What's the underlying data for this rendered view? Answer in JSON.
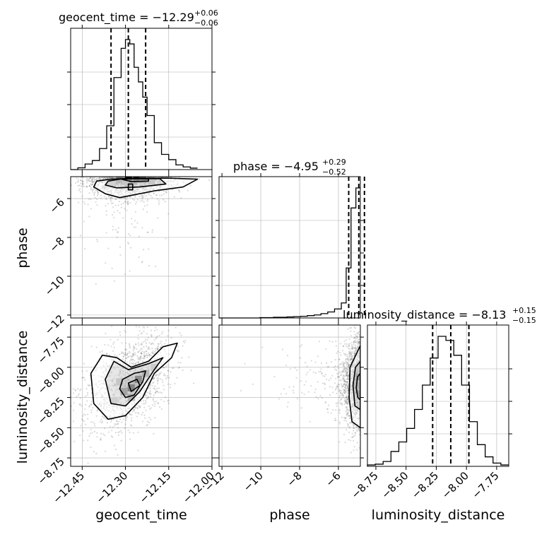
{
  "chart_data": {
    "type": "corner",
    "parameters": [
      "geocent_time",
      "phase",
      "luminosity_distance"
    ],
    "axis_labels": {
      "geocent_time": "geocent_time",
      "phase": "phase",
      "luminosity_distance": "luminosity_distance"
    },
    "ranges": {
      "geocent_time": [
        -12.49,
        -12.0
      ],
      "phase": [
        -12.15,
        -4.87
      ],
      "luminosity_distance": [
        -8.82,
        -7.65
      ]
    },
    "ticks": {
      "geocent_time": [
        -12.45,
        -12.3,
        -12.15,
        -12.0
      ],
      "phase": [
        -12,
        -10,
        -8,
        -6
      ],
      "luminosity_distance": [
        -8.75,
        -8.5,
        -8.25,
        -8.0,
        -7.75
      ]
    },
    "tick_labels": {
      "geocent_time": [
        "−12.45",
        "−12.30",
        "−12.15",
        "−12.00"
      ],
      "phase": [
        "−12",
        "−10",
        "−8",
        "−6"
      ],
      "luminosity_distance": [
        "−8.75",
        "−8.50",
        "−8.25",
        "−8.00",
        "−7.75"
      ]
    },
    "titles": [
      {
        "param": "geocent_time",
        "main": "geocent_time = −12.29",
        "plus": "+0.06",
        "minus": "−0.06"
      },
      {
        "param": "phase",
        "main": "phase = −4.95",
        "plus": "+0.29",
        "minus": "−0.52"
      },
      {
        "param": "luminosity_distance",
        "main": "luminosity_distance = −8.13",
        "plus": "+0.15",
        "minus": "−0.15"
      }
    ],
    "quantiles": {
      "geocent_time": [
        -12.35,
        -12.29,
        -12.23
      ],
      "phase": [
        -5.47,
        -4.95,
        -4.66
      ],
      "luminosity_distance": [
        -8.28,
        -8.13,
        -7.98
      ]
    },
    "histograms": {
      "geocent_time": {
        "edges": [
          -12.49,
          -12.465,
          -12.44,
          -12.415,
          -12.39,
          -12.365,
          -12.34,
          -12.315,
          -12.3,
          -12.285,
          -12.27,
          -12.255,
          -12.24,
          -12.225,
          -12.2,
          -12.175,
          -12.15,
          -12.125,
          -12.1,
          -12.075,
          -12.05
        ],
        "counts": [
          0,
          6,
          19,
          31,
          72,
          150,
          315,
          415,
          445,
          430,
          350,
          300,
          248,
          185,
          92,
          52,
          34,
          16,
          9,
          5
        ]
      },
      "phase": {
        "edges": [
          -12.15,
          -11.8,
          -11.45,
          -11.1,
          -10.75,
          -10.4,
          -10.05,
          -9.7,
          -9.35,
          -9.0,
          -8.65,
          -8.3,
          -7.95,
          -7.6,
          -7.25,
          -6.9,
          -6.55,
          -6.2,
          -5.85,
          -5.6,
          -5.35,
          -5.1,
          -4.87
        ],
        "counts": [
          0,
          0,
          0,
          0,
          0,
          0,
          1,
          1,
          2,
          2,
          3,
          4,
          5,
          7,
          9,
          13,
          18,
          27,
          45,
          150,
          330,
          390
        ]
      },
      "luminosity_distance": {
        "edges": [
          -8.82,
          -8.755,
          -8.69,
          -8.625,
          -8.56,
          -8.495,
          -8.43,
          -8.365,
          -8.3,
          -8.235,
          -8.17,
          -8.105,
          -8.04,
          -7.975,
          -7.91,
          -7.845,
          -7.78,
          -7.715,
          -7.65
        ],
        "counts": [
          5,
          8,
          18,
          55,
          90,
          140,
          210,
          300,
          400,
          480,
          465,
          410,
          300,
          165,
          80,
          35,
          12,
          5
        ]
      }
    },
    "contours_2d": [
      {
        "x": "geocent_time",
        "y": "phase",
        "levels": [
          [
            [
              -12.4,
              -5.1
            ],
            [
              -12.35,
              -5.0
            ],
            [
              -12.27,
              -4.95
            ],
            [
              -12.15,
              -4.95
            ],
            [
              -12.05,
              -5.0
            ],
            [
              -12.1,
              -5.4
            ],
            [
              -12.2,
              -5.6
            ],
            [
              -12.32,
              -5.95
            ],
            [
              -12.37,
              -5.75
            ],
            [
              -12.41,
              -5.4
            ]
          ],
          [
            [
              -12.36,
              -5.1
            ],
            [
              -12.32,
              -5.0
            ],
            [
              -12.27,
              -4.97
            ],
            [
              -12.18,
              -4.98
            ],
            [
              -12.16,
              -5.25
            ],
            [
              -12.25,
              -5.4
            ],
            [
              -12.33,
              -5.45
            ],
            [
              -12.37,
              -5.3
            ]
          ],
          [
            [
              -12.31,
              -5.02
            ],
            [
              -12.28,
              -4.98
            ],
            [
              -12.22,
              -4.99
            ],
            [
              -12.22,
              -5.1
            ],
            [
              -12.28,
              -5.12
            ]
          ],
          [
            [
              -12.29,
              -5.25
            ],
            [
              -12.275,
              -5.25
            ],
            [
              -12.275,
              -5.55
            ],
            [
              -12.29,
              -5.55
            ]
          ]
        ]
      },
      {
        "x": "geocent_time",
        "y": "luminosity_distance",
        "levels": [
          [
            [
              -12.42,
              -8.05
            ],
            [
              -12.38,
              -7.9
            ],
            [
              -12.33,
              -7.92
            ],
            [
              -12.28,
              -8.0
            ],
            [
              -12.22,
              -7.95
            ],
            [
              -12.17,
              -7.83
            ],
            [
              -12.12,
              -7.8
            ],
            [
              -12.14,
              -7.92
            ],
            [
              -12.2,
              -8.05
            ],
            [
              -12.24,
              -8.25
            ],
            [
              -12.3,
              -8.4
            ],
            [
              -12.36,
              -8.43
            ],
            [
              -12.41,
              -8.3
            ]
          ],
          [
            [
              -12.37,
              -8.1
            ],
            [
              -12.34,
              -7.95
            ],
            [
              -12.29,
              -8.02
            ],
            [
              -12.22,
              -7.97
            ],
            [
              -12.17,
              -7.92
            ],
            [
              -12.2,
              -8.02
            ],
            [
              -12.25,
              -8.2
            ],
            [
              -12.3,
              -8.32
            ],
            [
              -12.35,
              -8.3
            ]
          ],
          [
            [
              -12.31,
              -8.1
            ],
            [
              -12.27,
              -8.05
            ],
            [
              -12.23,
              -8.03
            ],
            [
              -12.24,
              -8.12
            ],
            [
              -12.27,
              -8.23
            ],
            [
              -12.3,
              -8.25
            ],
            [
              -12.32,
              -8.18
            ]
          ],
          [
            [
              -12.29,
              -8.13
            ],
            [
              -12.26,
              -8.1
            ],
            [
              -12.25,
              -8.15
            ],
            [
              -12.28,
              -8.2
            ]
          ]
        ]
      },
      {
        "x": "phase",
        "y": "luminosity_distance",
        "levels": [
          [
            [
              -4.87,
              -7.82
            ],
            [
              -5.05,
              -7.88
            ],
            [
              -5.4,
              -8.0
            ],
            [
              -5.45,
              -8.25
            ],
            [
              -5.3,
              -8.45
            ],
            [
              -4.87,
              -8.5
            ]
          ],
          [
            [
              -4.87,
              -7.95
            ],
            [
              -5.12,
              -8.0
            ],
            [
              -5.25,
              -8.15
            ],
            [
              -5.15,
              -8.32
            ],
            [
              -4.87,
              -8.35
            ]
          ],
          [
            [
              -4.87,
              -8.05
            ],
            [
              -5.02,
              -8.08
            ],
            [
              -5.08,
              -8.17
            ],
            [
              -5.0,
              -8.25
            ],
            [
              -4.87,
              -8.27
            ]
          ]
        ]
      }
    ],
    "density_2d": [
      {
        "x": "geocent_time",
        "y": "phase",
        "cells": [
          {
            "x": -12.29,
            "y": -4.99,
            "v": 1.0
          },
          {
            "x": -12.26,
            "y": -4.99,
            "v": 0.85
          },
          {
            "x": -12.32,
            "y": -5.02,
            "v": 0.5
          },
          {
            "x": -12.24,
            "y": -5.02,
            "v": 0.55
          },
          {
            "x": -12.3,
            "y": -5.12,
            "v": 0.35
          },
          {
            "x": -12.21,
            "y": -5.08,
            "v": 0.35
          },
          {
            "x": -12.35,
            "y": -5.15,
            "v": 0.22
          }
        ]
      },
      {
        "x": "geocent_time",
        "y": "luminosity_distance",
        "cells": [
          {
            "x": -12.28,
            "y": -8.17,
            "v": 1.0
          },
          {
            "x": -12.255,
            "y": -8.1,
            "v": 0.9
          },
          {
            "x": -12.305,
            "y": -8.2,
            "v": 0.6
          },
          {
            "x": -12.28,
            "y": -8.25,
            "v": 0.55
          },
          {
            "x": -12.23,
            "y": -8.05,
            "v": 0.5
          },
          {
            "x": -12.32,
            "y": -8.12,
            "v": 0.35
          },
          {
            "x": -12.2,
            "y": -8.0,
            "v": 0.3
          },
          {
            "x": -12.34,
            "y": -8.28,
            "v": 0.25
          }
        ]
      },
      {
        "x": "phase",
        "y": "luminosity_distance",
        "cells": [
          {
            "x": -4.93,
            "y": -8.15,
            "v": 1.0
          },
          {
            "x": -4.93,
            "y": -8.08,
            "v": 0.7
          },
          {
            "x": -4.93,
            "y": -8.22,
            "v": 0.65
          },
          {
            "x": -5.05,
            "y": -8.15,
            "v": 0.45
          },
          {
            "x": -5.05,
            "y": -8.0,
            "v": 0.3
          },
          {
            "x": -5.15,
            "y": -8.25,
            "v": 0.25
          }
        ]
      }
    ],
    "grid": true,
    "colors": {
      "line": "#000000",
      "grid": "#b0b0b0",
      "points": "#555555"
    }
  }
}
